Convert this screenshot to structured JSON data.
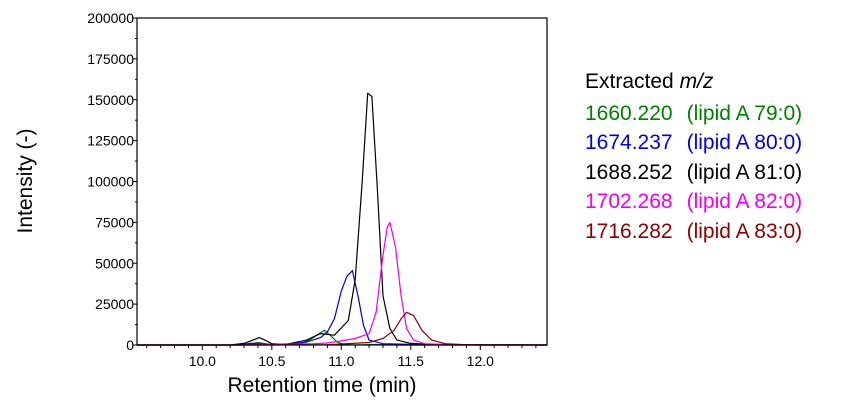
{
  "chart_data": {
    "type": "line",
    "title": "",
    "xlabel": "Retention time (min)",
    "ylabel": "Intensity (-)",
    "xlim": [
      9.53,
      12.48
    ],
    "ylim": [
      0,
      200000
    ],
    "xticks": [
      "10.0",
      "10.5",
      "11.0",
      "11.5",
      "12.0"
    ],
    "yticks": [
      "0",
      "25000",
      "50000",
      "75000",
      "100000",
      "125000",
      "150000",
      "175000",
      "200000"
    ],
    "legend_title": "Extracted",
    "legend_title_italic": "m/z",
    "legend_position": "right",
    "grid": false,
    "series": [
      {
        "name": "1660.220",
        "label": "(lipid A 79:0)",
        "color": "#008000",
        "points": [
          [
            9.53,
            0
          ],
          [
            10.3,
            0
          ],
          [
            10.4,
            1500
          ],
          [
            10.5,
            0
          ],
          [
            10.7,
            600
          ],
          [
            10.78,
            3500
          ],
          [
            10.84,
            7000
          ],
          [
            10.88,
            9000
          ],
          [
            10.92,
            6000
          ],
          [
            10.97,
            1800
          ],
          [
            11.02,
            400
          ],
          [
            11.1,
            0
          ],
          [
            11.25,
            300
          ],
          [
            11.4,
            0
          ],
          [
            12.48,
            0
          ]
        ]
      },
      {
        "name": "1674.237",
        "label": "(lipid A 80:0)",
        "color": "#0000dd",
        "points": [
          [
            9.53,
            0
          ],
          [
            10.2,
            0
          ],
          [
            10.3,
            400
          ],
          [
            10.35,
            1000
          ],
          [
            10.42,
            900
          ],
          [
            10.5,
            300
          ],
          [
            10.65,
            800
          ],
          [
            10.75,
            1800
          ],
          [
            10.85,
            4500
          ],
          [
            10.9,
            8000
          ],
          [
            10.95,
            16000
          ],
          [
            11.0,
            33000
          ],
          [
            11.04,
            42000
          ],
          [
            11.08,
            45500
          ],
          [
            11.12,
            30000
          ],
          [
            11.16,
            12000
          ],
          [
            11.2,
            3000
          ],
          [
            11.3,
            800
          ],
          [
            11.5,
            400
          ],
          [
            12.48,
            0
          ]
        ]
      },
      {
        "name": "1688.252",
        "label": "(lipid A 81:0)",
        "color": "#000000",
        "points": [
          [
            9.53,
            0
          ],
          [
            10.2,
            0
          ],
          [
            10.3,
            1000
          ],
          [
            10.38,
            3500
          ],
          [
            10.41,
            4500
          ],
          [
            10.45,
            3000
          ],
          [
            10.5,
            800
          ],
          [
            10.6,
            300
          ],
          [
            10.75,
            3000
          ],
          [
            10.85,
            7000
          ],
          [
            10.95,
            6000
          ],
          [
            11.05,
            15000
          ],
          [
            11.1,
            40000
          ],
          [
            11.15,
            100000
          ],
          [
            11.19,
            154000
          ],
          [
            11.22,
            152000
          ],
          [
            11.26,
            95000
          ],
          [
            11.3,
            30000
          ],
          [
            11.35,
            10000
          ],
          [
            11.4,
            3000
          ],
          [
            11.5,
            1000
          ],
          [
            11.65,
            300
          ],
          [
            12.0,
            0
          ],
          [
            12.48,
            0
          ]
        ]
      },
      {
        "name": "1702.268",
        "label": "(lipid A 82:0)",
        "color": "#ee00ee",
        "points": [
          [
            9.53,
            0
          ],
          [
            10.3,
            0
          ],
          [
            10.4,
            500
          ],
          [
            10.5,
            300
          ],
          [
            10.8,
            800
          ],
          [
            10.9,
            1200
          ],
          [
            11.0,
            2500
          ],
          [
            11.1,
            4000
          ],
          [
            11.2,
            7000
          ],
          [
            11.25,
            20000
          ],
          [
            11.3,
            55000
          ],
          [
            11.33,
            72000
          ],
          [
            11.35,
            75000
          ],
          [
            11.39,
            60000
          ],
          [
            11.43,
            30000
          ],
          [
            11.47,
            10000
          ],
          [
            11.52,
            3000
          ],
          [
            11.6,
            800
          ],
          [
            11.8,
            200
          ],
          [
            12.48,
            0
          ]
        ]
      },
      {
        "name": "1716.282",
        "label": "(lipid A 83:0)",
        "color": "#8b0000",
        "points": [
          [
            9.53,
            0
          ],
          [
            10.4,
            0
          ],
          [
            10.9,
            200
          ],
          [
            11.2,
            1500
          ],
          [
            11.3,
            4000
          ],
          [
            11.38,
            9000
          ],
          [
            11.43,
            16000
          ],
          [
            11.47,
            20000
          ],
          [
            11.52,
            18000
          ],
          [
            11.58,
            9000
          ],
          [
            11.65,
            3000
          ],
          [
            11.75,
            800
          ],
          [
            11.9,
            200
          ],
          [
            12.48,
            0
          ]
        ]
      }
    ]
  }
}
